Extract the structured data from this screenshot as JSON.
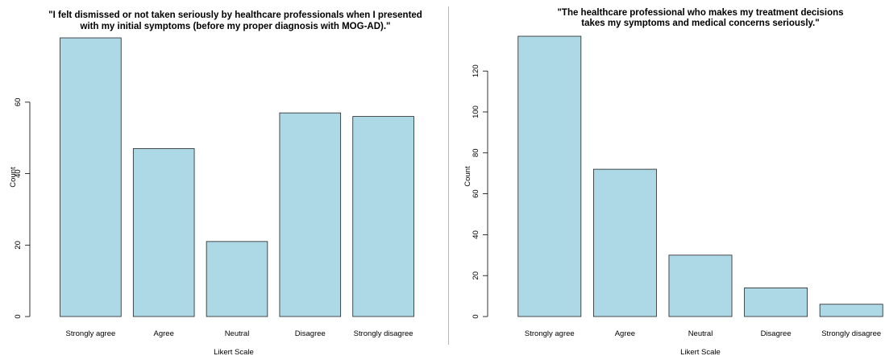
{
  "chart_data": [
    {
      "type": "bar",
      "title_line1": "\"I felt dismissed or not taken seriously by healthcare professionals when I presented",
      "title_line2": "with my initial symptoms (before my proper diagnosis with MOG-AD).\"",
      "categories": [
        "Strongly agree",
        "Agree",
        "Neutral",
        "Disagree",
        "Strongly disagree"
      ],
      "values": [
        78,
        47,
        21,
        57,
        56
      ],
      "xlabel": "Likert Scale",
      "ylabel": "Count",
      "yticks": [
        0,
        20,
        40,
        60
      ],
      "ylim": [
        0,
        78
      ],
      "color": "#add8e6",
      "grid": false
    },
    {
      "type": "bar",
      "title_line1": "\"The healthcare professional who makes my treatment decisions",
      "title_line2": "takes my symptoms and medical concerns seriously.\"",
      "categories": [
        "Strongly agree",
        "Agree",
        "Neutral",
        "Disagree",
        "Strongly disagree"
      ],
      "values": [
        137,
        72,
        30,
        14,
        6
      ],
      "xlabel": "Likert Scale",
      "ylabel": "Count",
      "yticks": [
        0,
        20,
        40,
        60,
        80,
        100,
        120
      ],
      "ylim": [
        0,
        137
      ],
      "color": "#add8e6",
      "grid": false
    }
  ]
}
